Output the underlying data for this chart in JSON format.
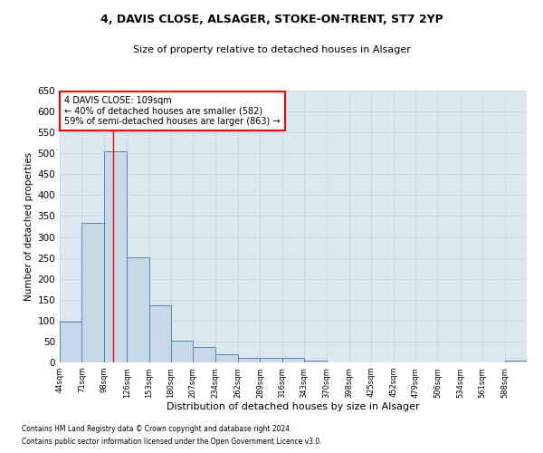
{
  "title1": "4, DAVIS CLOSE, ALSAGER, STOKE-ON-TRENT, ST7 2YP",
  "title2": "Size of property relative to detached houses in Alsager",
  "xlabel": "Distribution of detached houses by size in Alsager",
  "ylabel": "Number of detached properties",
  "footnote1": "Contains HM Land Registry data © Crown copyright and database right 2024.",
  "footnote2": "Contains public sector information licensed under the Open Government Licence v3.0.",
  "annotation_line1": "4 DAVIS CLOSE: 109sqm",
  "annotation_line2": "← 40% of detached houses are smaller (582)",
  "annotation_line3": "59% of semi-detached houses are larger (863) →",
  "bar_color": "#c8d8e8",
  "bar_edge_color": "#5588aa",
  "red_line_x": 109,
  "categories": [
    "44sqm",
    "71sqm",
    "98sqm",
    "126sqm",
    "153sqm",
    "180sqm",
    "207sqm",
    "234sqm",
    "262sqm",
    "289sqm",
    "316sqm",
    "343sqm",
    "370sqm",
    "398sqm",
    "425sqm",
    "452sqm",
    "479sqm",
    "506sqm",
    "534sqm",
    "561sqm",
    "588sqm"
  ],
  "bin_edges": [
    44,
    71,
    98,
    126,
    153,
    180,
    207,
    234,
    262,
    289,
    316,
    343,
    370,
    398,
    425,
    452,
    479,
    506,
    534,
    561,
    588,
    615
  ],
  "values": [
    97,
    333,
    505,
    252,
    136,
    53,
    36,
    20,
    10,
    10,
    10,
    5,
    0,
    0,
    0,
    0,
    0,
    0,
    0,
    0,
    4
  ],
  "ylim": [
    0,
    650
  ],
  "yticks": [
    0,
    50,
    100,
    150,
    200,
    250,
    300,
    350,
    400,
    450,
    500,
    550,
    600,
    650
  ],
  "grid_color": "#c8d0d8",
  "background_color": "#dce8f0",
  "title1_fontsize": 9,
  "title2_fontsize": 8,
  "ylabel_fontsize": 7.5,
  "xlabel_fontsize": 8,
  "ytick_fontsize": 7.5,
  "xtick_fontsize": 6,
  "footnote_fontsize": 5.5,
  "ann_fontsize": 7
}
